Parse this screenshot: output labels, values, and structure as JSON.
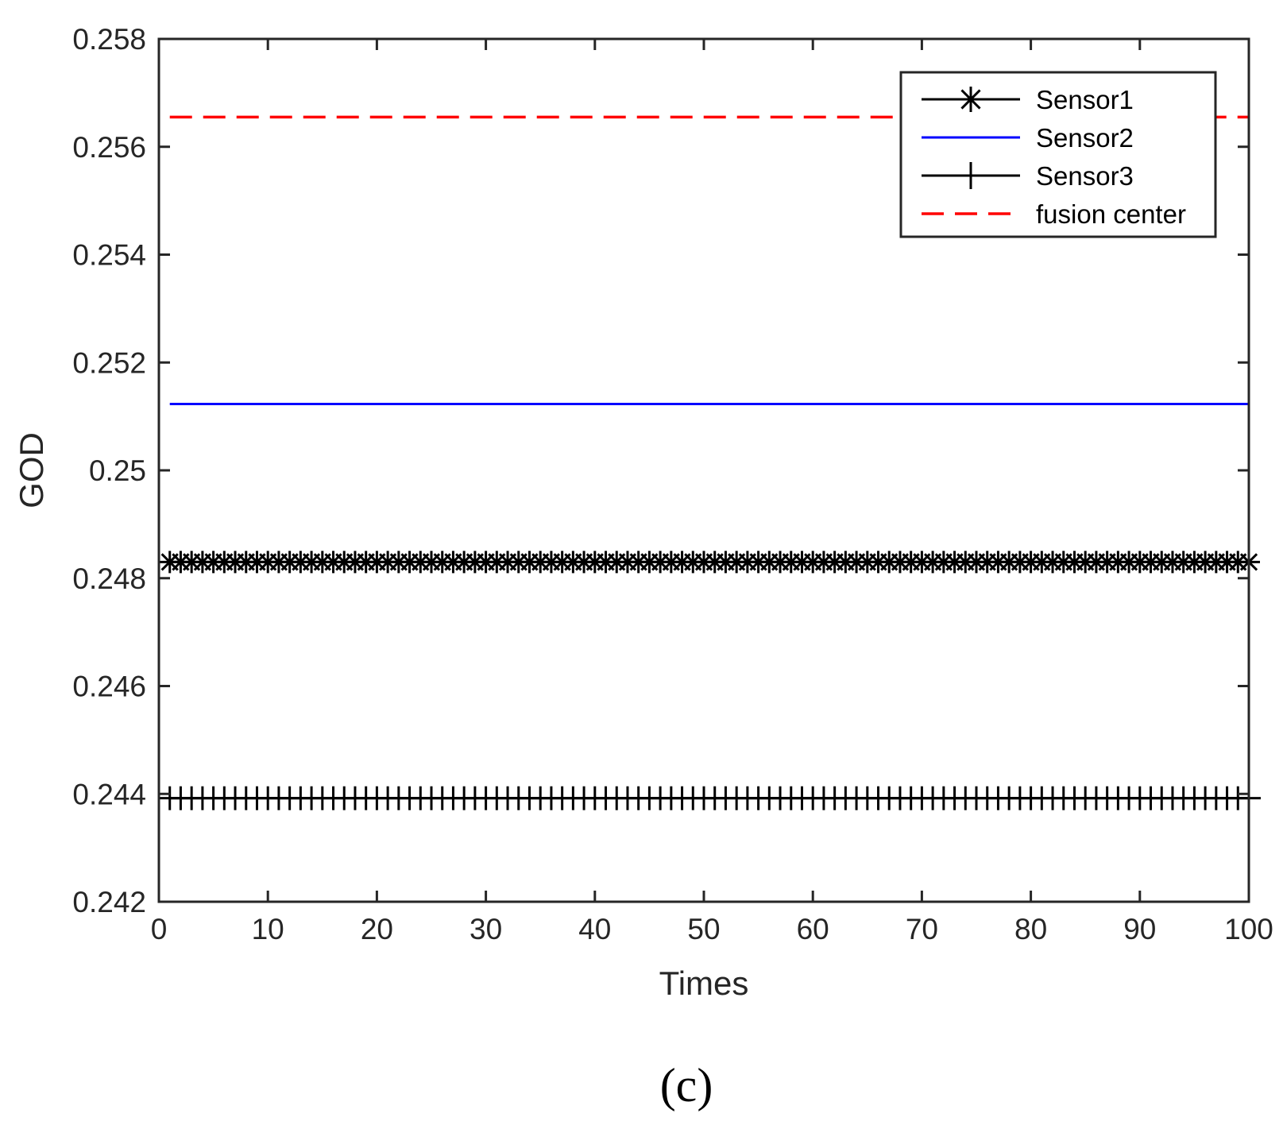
{
  "caption": "(c)",
  "chart_data": {
    "type": "line",
    "xlabel": "Times",
    "ylabel": "GOD",
    "xlim": [
      0,
      100
    ],
    "ylim": [
      0.242,
      0.258
    ],
    "xticks": [
      0,
      10,
      20,
      30,
      40,
      50,
      60,
      70,
      80,
      90,
      100
    ],
    "yticks": [
      0.242,
      0.244,
      0.246,
      0.248,
      0.25,
      0.252,
      0.254,
      0.256,
      0.258
    ],
    "xtick_labels": [
      "0",
      "10",
      "20",
      "30",
      "40",
      "50",
      "60",
      "70",
      "80",
      "90",
      "100"
    ],
    "ytick_labels": [
      "0.242",
      "0.244",
      "0.246",
      "0.248",
      "0.25",
      "0.252",
      "0.254",
      "0.256",
      "0.258"
    ],
    "grid": false,
    "legend_position": "top-right",
    "x_range": [
      1,
      100
    ],
    "series": [
      {
        "name": "Sensor1",
        "y": 0.2483,
        "color": "#000000",
        "line": "solid",
        "marker": "asterisk"
      },
      {
        "name": "Sensor2",
        "y": 0.25123,
        "color": "#0000ff",
        "line": "solid",
        "marker": "none"
      },
      {
        "name": "Sensor3",
        "y": 0.24392,
        "color": "#000000",
        "line": "solid",
        "marker": "plus"
      },
      {
        "name": "fusion center",
        "y": 0.25655,
        "color": "#ff0000",
        "line": "dashed",
        "marker": "none"
      }
    ]
  }
}
